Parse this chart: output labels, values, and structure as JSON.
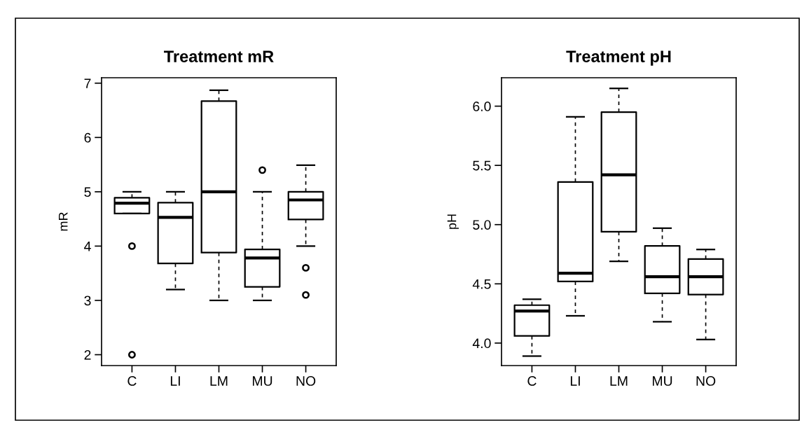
{
  "chart_data": [
    {
      "type": "box",
      "title": "Treatment mR",
      "ylabel": "mR",
      "categories": [
        "C",
        "LI",
        "LM",
        "MU",
        "NO"
      ],
      "ylim": [
        1.8,
        7.1
      ],
      "yticks": [
        2,
        3,
        4,
        5,
        6,
        7
      ],
      "grid": false,
      "legend": false,
      "boxes": [
        {
          "low": 4.6,
          "q1": 4.6,
          "median": 4.79,
          "q3": 4.89,
          "high": 5.0,
          "outliers": [
            4.0,
            2.0
          ]
        },
        {
          "low": 3.2,
          "q1": 3.68,
          "median": 4.53,
          "q3": 4.8,
          "high": 5.0
        },
        {
          "low": 3.0,
          "q1": 3.88,
          "median": 5.0,
          "q3": 6.67,
          "high": 6.87
        },
        {
          "low": 3.0,
          "q1": 3.25,
          "median": 3.78,
          "q3": 3.94,
          "high": 5.0,
          "outliers": [
            5.4
          ]
        },
        {
          "low": 4.0,
          "q1": 4.49,
          "median": 4.85,
          "q3": 5.0,
          "high": 5.49,
          "outliers": [
            3.6,
            3.1
          ]
        }
      ]
    },
    {
      "type": "box",
      "title": "Treatment pH",
      "ylabel": "pH",
      "categories": [
        "C",
        "LI",
        "LM",
        "MU",
        "NO"
      ],
      "ylim": [
        3.81,
        6.24
      ],
      "yticks": [
        {
          "value": 4.0,
          "label": "4.0"
        },
        4.5,
        {
          "value": 5.0,
          "label": "5.0"
        },
        5.5,
        {
          "value": 6.0,
          "label": "6.0"
        }
      ],
      "grid": false,
      "legend": false,
      "boxes": [
        {
          "low": 3.89,
          "q1": 4.06,
          "median": 4.27,
          "q3": 4.32,
          "high": 4.37
        },
        {
          "low": 4.23,
          "q1": 4.52,
          "median": 4.59,
          "q3": 5.36,
          "high": 5.91
        },
        {
          "low": 4.69,
          "q1": 4.94,
          "median": 5.42,
          "q3": 5.95,
          "high": 6.15
        },
        {
          "low": 4.18,
          "q1": 4.42,
          "median": 4.56,
          "q3": 4.82,
          "high": 4.97
        },
        {
          "low": 4.03,
          "q1": 4.41,
          "median": 4.56,
          "q3": 4.71,
          "high": 4.79
        }
      ]
    }
  ]
}
